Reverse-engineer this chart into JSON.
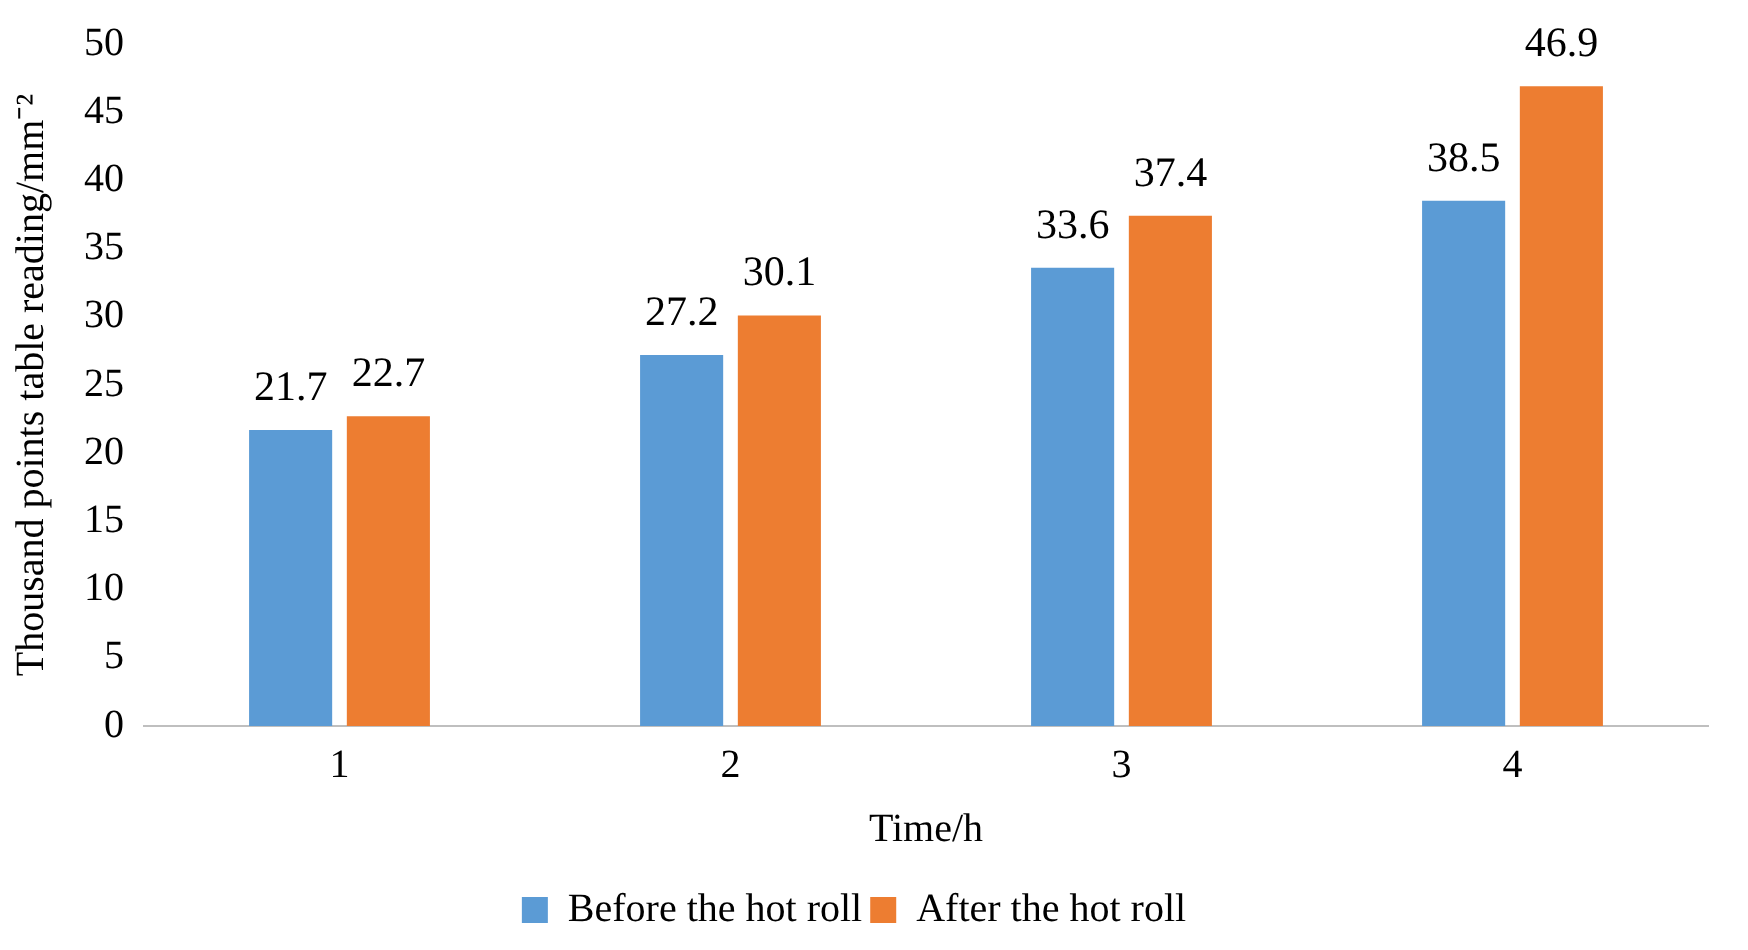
{
  "chart_data": {
    "type": "bar",
    "xlabel": "Time/h",
    "ylabel": "Thousand points table reading/mm⁻²",
    "categories": [
      "1",
      "2",
      "3",
      "4"
    ],
    "series": [
      {
        "name": "Before the hot roll",
        "color": "#5b9bd5",
        "values": [
          21.7,
          27.2,
          33.6,
          38.5
        ]
      },
      {
        "name": "After the hot roll",
        "color": "#ed7d31",
        "values": [
          22.7,
          30.1,
          37.4,
          46.9
        ]
      }
    ],
    "ylim": [
      0,
      50
    ],
    "yticks": [
      0,
      5,
      10,
      15,
      20,
      25,
      30,
      35,
      40,
      45,
      50
    ],
    "grid": false,
    "legend": "bottom",
    "data_labels": true
  }
}
